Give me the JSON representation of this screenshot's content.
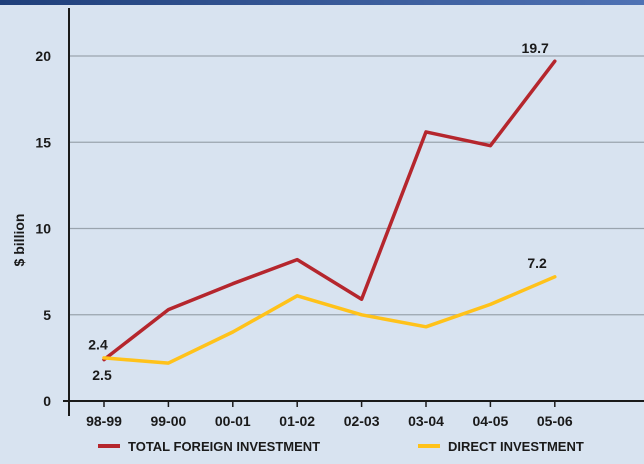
{
  "chart_data": {
    "type": "line",
    "title": "",
    "xlabel": "",
    "ylabel": "$ billion",
    "categories": [
      "98-99",
      "99-00",
      "00-01",
      "01-02",
      "02-03",
      "03-04",
      "04-05",
      "05-06"
    ],
    "yticks": [
      "0",
      "5",
      "10",
      "15",
      "20"
    ],
    "ylim": [
      0,
      22
    ],
    "grid": true,
    "legend": "bottom",
    "series": [
      {
        "name": "TOTAL FOREIGN INVESTMENT",
        "color": "#b5262d",
        "values": [
          2.4,
          5.3,
          6.8,
          8.2,
          5.9,
          15.6,
          14.8,
          19.7
        ]
      },
      {
        "name": "DIRECT INVESTMENT",
        "color": "#ffc21a",
        "values": [
          2.5,
          2.2,
          4.0,
          6.1,
          5.0,
          4.3,
          5.6,
          7.2
        ]
      }
    ],
    "annotations": [
      {
        "text": "2.4",
        "series": 0,
        "index": 0
      },
      {
        "text": "2.5",
        "series": 1,
        "index": 0
      },
      {
        "text": "19.7",
        "series": 0,
        "index": 7
      },
      {
        "text": "7.2",
        "series": 1,
        "index": 7
      }
    ]
  }
}
